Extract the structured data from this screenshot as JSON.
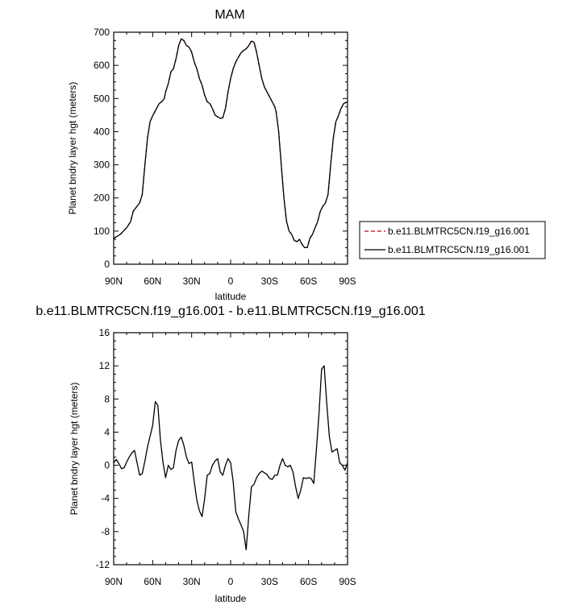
{
  "chart_data": [
    {
      "type": "line",
      "title": "MAM",
      "xlabel": "latitude",
      "ylabel": "Planet bndry layer hgt (meters)",
      "xlim": [
        90,
        -90
      ],
      "ylim": [
        0,
        700
      ],
      "xticks": [
        90,
        60,
        30,
        0,
        -30,
        -60,
        -90
      ],
      "xtick_labels": [
        "90N",
        "60N",
        "30N",
        "0",
        "30S",
        "60S",
        "90S"
      ],
      "yticks": [
        0,
        100,
        200,
        300,
        400,
        500,
        600,
        700
      ],
      "ytick_labels": [
        "0",
        "100",
        "200",
        "300",
        "400",
        "500",
        "600",
        "700"
      ],
      "legend_position": "right",
      "series": [
        {
          "name": "b.e11.BLMTRC5CN.f19_g16.001",
          "color": "#cc0000",
          "dash": "dashed",
          "x": [
            90,
            85,
            80,
            77,
            75,
            72,
            70,
            68,
            66,
            64,
            62,
            60,
            57,
            55,
            53,
            51,
            50,
            48,
            46,
            44,
            42,
            40,
            38,
            36,
            34,
            32,
            30,
            28,
            26,
            24,
            22,
            20,
            18,
            16,
            14,
            12,
            10,
            8,
            6,
            4,
            2,
            0,
            -2,
            -4,
            -6,
            -8,
            -10,
            -12,
            -14,
            -16,
            -18,
            -20,
            -22,
            -24,
            -26,
            -28,
            -30,
            -32,
            -34,
            -35,
            -37,
            -39,
            -41,
            -43,
            -45,
            -47,
            -49,
            -51,
            -53,
            -55,
            -57,
            -59,
            -61,
            -63,
            -65,
            -67,
            -69,
            -71,
            -73,
            -75,
            -77,
            -79,
            -81,
            -83,
            -85,
            -87,
            -90
          ],
          "y": [
            78,
            90,
            110,
            128,
            160,
            175,
            185,
            210,
            300,
            380,
            430,
            448,
            470,
            485,
            490,
            500,
            520,
            545,
            580,
            590,
            620,
            660,
            680,
            675,
            660,
            655,
            640,
            610,
            590,
            560,
            540,
            510,
            490,
            485,
            470,
            450,
            445,
            440,
            442,
            470,
            520,
            560,
            590,
            610,
            625,
            638,
            645,
            650,
            660,
            673,
            670,
            640,
            600,
            560,
            535,
            520,
            505,
            490,
            475,
            460,
            400,
            300,
            200,
            130,
            100,
            90,
            72,
            68,
            75,
            60,
            50,
            50,
            78,
            90,
            110,
            128,
            160,
            175,
            185,
            210,
            300,
            380,
            430,
            448,
            470,
            485,
            490
          ]
        },
        {
          "name": "b.e11.BLMTRC5CN.f19_g16.001",
          "color": "#000000",
          "dash": "solid",
          "x": [
            90,
            85,
            80,
            77,
            75,
            72,
            70,
            68,
            66,
            64,
            62,
            60,
            57,
            55,
            53,
            51,
            50,
            48,
            46,
            44,
            42,
            40,
            38,
            36,
            34,
            32,
            30,
            28,
            26,
            24,
            22,
            20,
            18,
            16,
            14,
            12,
            10,
            8,
            6,
            4,
            2,
            0,
            -2,
            -4,
            -6,
            -8,
            -10,
            -12,
            -14,
            -16,
            -18,
            -20,
            -22,
            -24,
            -26,
            -28,
            -30,
            -32,
            -34,
            -35,
            -37,
            -39,
            -41,
            -43,
            -45,
            -47,
            -49,
            -51,
            -53,
            -55,
            -57,
            -59,
            -61,
            -63,
            -65,
            -67,
            -69,
            -71,
            -73,
            -75,
            -77,
            -79,
            -81,
            -83,
            -85,
            -87,
            -90
          ],
          "y": [
            78,
            90,
            110,
            128,
            160,
            175,
            185,
            210,
            300,
            380,
            430,
            448,
            470,
            485,
            490,
            500,
            520,
            545,
            580,
            590,
            620,
            660,
            680,
            675,
            660,
            655,
            640,
            610,
            590,
            560,
            540,
            510,
            490,
            485,
            470,
            450,
            445,
            440,
            442,
            470,
            520,
            560,
            590,
            610,
            625,
            638,
            645,
            650,
            660,
            673,
            670,
            640,
            600,
            560,
            535,
            520,
            505,
            490,
            475,
            460,
            400,
            300,
            200,
            130,
            100,
            90,
            72,
            68,
            75,
            60,
            50,
            50,
            78,
            90,
            110,
            128,
            160,
            175,
            185,
            210,
            300,
            380,
            430,
            448,
            470,
            485,
            490
          ]
        }
      ]
    },
    {
      "type": "line",
      "title": "b.e11.BLMTRC5CN.f19_g16.001 - b.e11.BLMTRC5CN.f19_g16.001",
      "xlabel": "latitude",
      "ylabel": "Planet bndry layer hgt (meters)",
      "xlim": [
        90,
        -90
      ],
      "ylim": [
        -12,
        16
      ],
      "xticks": [
        90,
        60,
        30,
        0,
        -30,
        -60,
        -90
      ],
      "xtick_labels": [
        "90N",
        "60N",
        "30N",
        "0",
        "30S",
        "60S",
        "90S"
      ],
      "yticks": [
        -12,
        -8,
        -4,
        0,
        4,
        8,
        12,
        16
      ],
      "ytick_labels": [
        "-12",
        "-8",
        "-4",
        "0",
        "4",
        "8",
        "12",
        "16"
      ],
      "series": [
        {
          "color": "#000000",
          "dash": "solid",
          "x": [
            90,
            88,
            86,
            84,
            82,
            80,
            78,
            76,
            74,
            72,
            70,
            68,
            66,
            64,
            62,
            60,
            58,
            56,
            54,
            52,
            50,
            48,
            46,
            44,
            42,
            40,
            38,
            36,
            34,
            32,
            30,
            28,
            26,
            24,
            22,
            20,
            18,
            16,
            14,
            12,
            10,
            8,
            6,
            4,
            2,
            0,
            -2,
            -4,
            -6,
            -8,
            -10,
            -12,
            -14,
            -16,
            -18,
            -20,
            -22,
            -24,
            -26,
            -28,
            -30,
            -32,
            -34,
            -36,
            -38,
            -40,
            -42,
            -44,
            -46,
            -48,
            -50,
            -52,
            -54,
            -56,
            -58,
            -60,
            -62,
            -64,
            -66,
            -68,
            -70,
            -72,
            -74,
            -76,
            -78,
            -80,
            -82,
            -84,
            -86,
            -88,
            -90
          ],
          "y": [
            0.3,
            0.7,
            0.2,
            -0.4,
            -0.3,
            0.4,
            1.0,
            1.5,
            1.8,
            0.3,
            -1.2,
            -1.0,
            0.5,
            2.2,
            3.5,
            4.8,
            7.7,
            7.2,
            3.0,
            0.3,
            -1.5,
            0,
            -0.5,
            -0.3,
            1.8,
            3.0,
            3.4,
            2.4,
            1.0,
            0.2,
            0.4,
            -2.0,
            -4.2,
            -5.5,
            -6.2,
            -4.0,
            -1.2,
            -1.0,
            0,
            0.5,
            0.8,
            -0.8,
            -1.2,
            0,
            0.8,
            0.3,
            -2.0,
            -5.6,
            -6.5,
            -7.2,
            -8.0,
            -10.2,
            -6.0,
            -2.6,
            -2.3,
            -1.5,
            -1.0,
            -0.7,
            -0.9,
            -1.1,
            -1.6,
            -1.7,
            -1.2,
            -1.2,
            0,
            0.8,
            0,
            -0.2,
            0,
            -0.8,
            -2.6,
            -4.0,
            -3.0,
            -1.5,
            -1.6,
            -1.5,
            -1.6,
            -2.2,
            1.8,
            6.2,
            11.6,
            12.0,
            7.5,
            3.5,
            1.6,
            1.8,
            2.0,
            0.3,
            0,
            -0.6,
            0.3
          ]
        }
      ]
    }
  ],
  "legend": {
    "entries": [
      {
        "label": "b.e11.BLMTRC5CN.f19_g16.001",
        "color": "#cc0000",
        "dash": "dashed"
      },
      {
        "label": "b.e11.BLMTRC5CN.f19_g16.001",
        "color": "#000000",
        "dash": "solid"
      }
    ]
  }
}
